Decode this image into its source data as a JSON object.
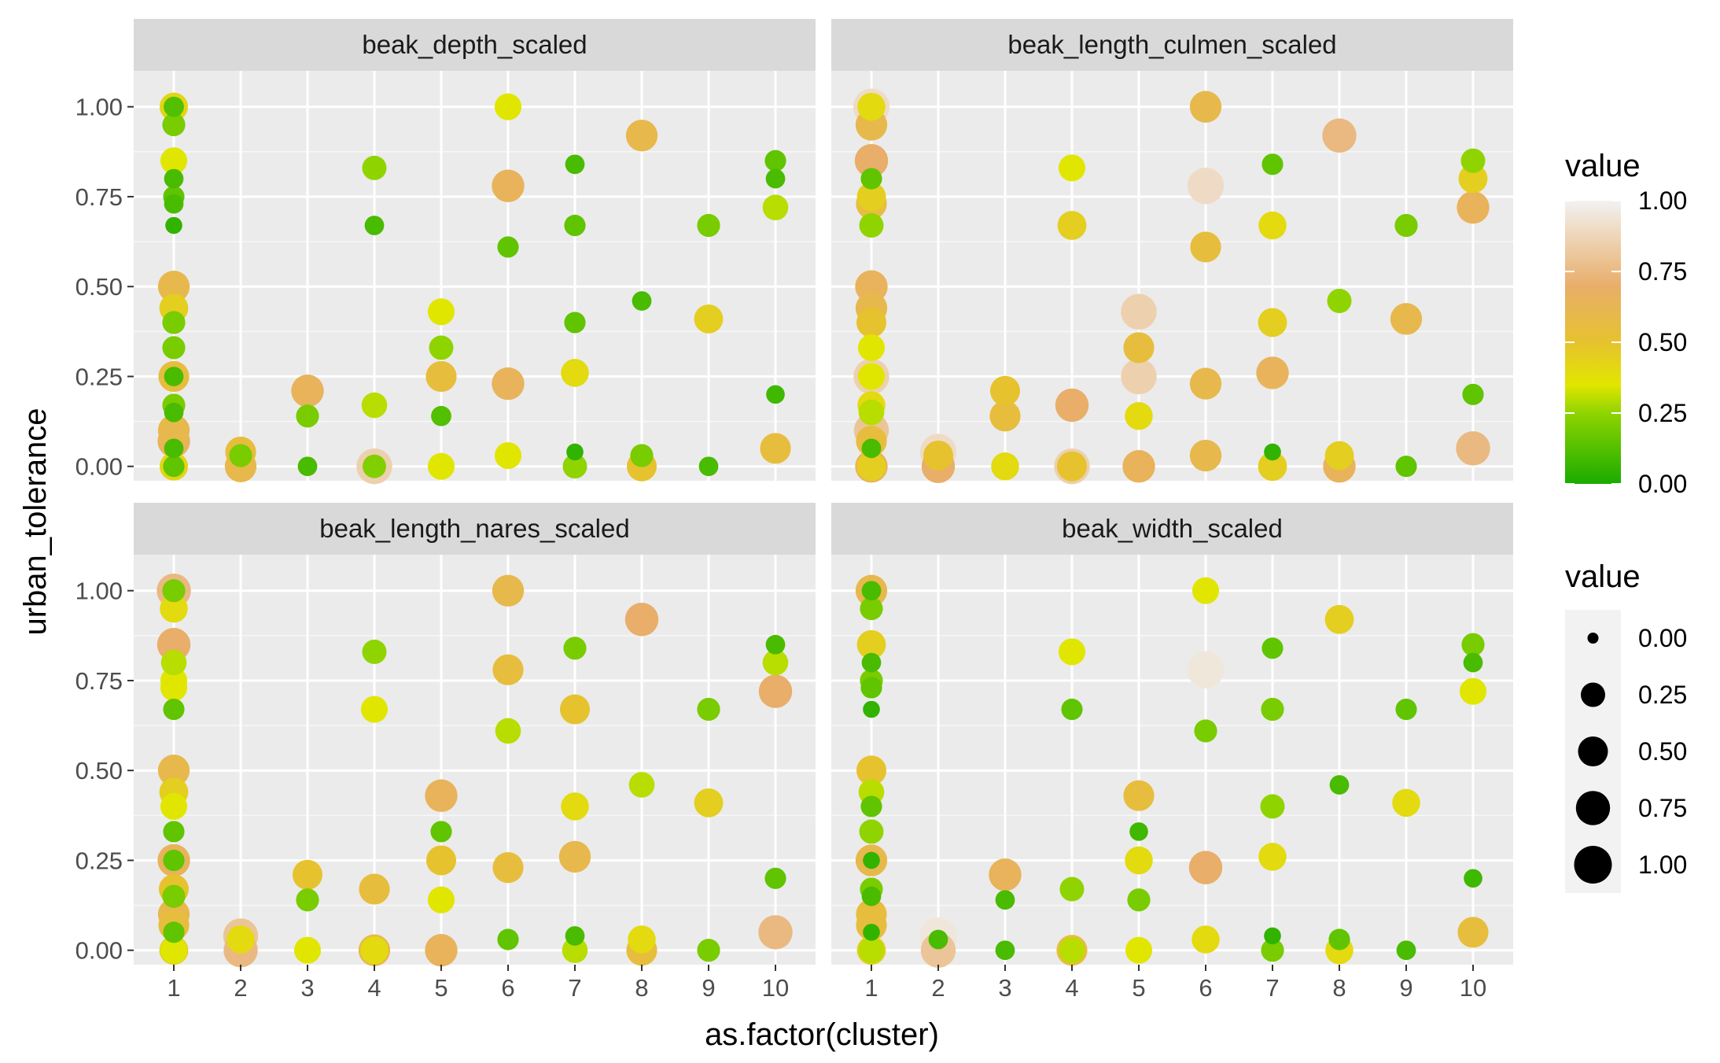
{
  "chart_data": {
    "type": "scatter",
    "layout": "facet_wrap 2x2",
    "xlabel": "as.factor(cluster)",
    "ylabel": "urban_tolerance",
    "x_categories": [
      "1",
      "2",
      "3",
      "4",
      "5",
      "6",
      "7",
      "8",
      "9",
      "10"
    ],
    "y_ticks": [
      0,
      0.25,
      0.5,
      0.75,
      1.0
    ],
    "y_tick_labels": [
      "0.00",
      "0.25",
      "0.50",
      "0.75",
      "1.00"
    ],
    "ylim": [
      -0.04,
      1.1
    ],
    "grid": true,
    "encoding": {
      "color": "value",
      "size": "value"
    },
    "color_legend": {
      "title": "value",
      "range": [
        0,
        1
      ],
      "ticks": [
        "1.00",
        "0.75",
        "0.50",
        "0.25",
        "0.00"
      ],
      "stops": [
        {
          "value": 0.0,
          "color": "#1aab00"
        },
        {
          "value": 0.25,
          "color": "#8fd400"
        },
        {
          "value": 0.35,
          "color": "#e1e600"
        },
        {
          "value": 0.5,
          "color": "#e6c22e"
        },
        {
          "value": 0.7,
          "color": "#e8ae6a"
        },
        {
          "value": 1.0,
          "color": "#f2f2f2"
        }
      ]
    },
    "size_legend": {
      "title": "value",
      "breaks": [
        0.0,
        0.25,
        0.5,
        0.75,
        1.0
      ],
      "labels": [
        "0.00",
        "0.25",
        "0.50",
        "0.75",
        "1.00"
      ]
    },
    "legend_position": "right",
    "facets": [
      {
        "name": "beak_depth_scaled",
        "points": [
          [
            1,
            1.0,
            0.42
          ],
          [
            1,
            1.0,
            0.12
          ],
          [
            1,
            0.95,
            0.2
          ],
          [
            1,
            0.85,
            0.35
          ],
          [
            1,
            0.8,
            0.1
          ],
          [
            1,
            0.75,
            0.15
          ],
          [
            1,
            0.73,
            0.1
          ],
          [
            1,
            0.67,
            0.05
          ],
          [
            1,
            0.5,
            0.6
          ],
          [
            1,
            0.44,
            0.45
          ],
          [
            1,
            0.4,
            0.2
          ],
          [
            1,
            0.33,
            0.2
          ],
          [
            1,
            0.25,
            0.55
          ],
          [
            1,
            0.25,
            0.1
          ],
          [
            1,
            0.17,
            0.2
          ],
          [
            1,
            0.15,
            0.1
          ],
          [
            1,
            0.1,
            0.6
          ],
          [
            1,
            0.07,
            0.65
          ],
          [
            1,
            0.05,
            0.1
          ],
          [
            1,
            0.0,
            0.42
          ],
          [
            1,
            0.0,
            0.15
          ],
          [
            2,
            0.04,
            0.55
          ],
          [
            2,
            0.0,
            0.6
          ],
          [
            2,
            0.03,
            0.2
          ],
          [
            3,
            0.21,
            0.65
          ],
          [
            3,
            0.14,
            0.2
          ],
          [
            3,
            0.0,
            0.1
          ],
          [
            4,
            0.83,
            0.25
          ],
          [
            4,
            0.67,
            0.1
          ],
          [
            4,
            0.17,
            0.3
          ],
          [
            4,
            0.0,
            0.85
          ],
          [
            4,
            0.0,
            0.22
          ],
          [
            5,
            0.43,
            0.35
          ],
          [
            5,
            0.33,
            0.25
          ],
          [
            5,
            0.25,
            0.55
          ],
          [
            5,
            0.14,
            0.12
          ],
          [
            5,
            0.0,
            0.35
          ],
          [
            6,
            1.0,
            0.35
          ],
          [
            6,
            0.78,
            0.65
          ],
          [
            6,
            0.61,
            0.15
          ],
          [
            6,
            0.23,
            0.65
          ],
          [
            6,
            0.03,
            0.35
          ],
          [
            7,
            0.84,
            0.1
          ],
          [
            7,
            0.67,
            0.15
          ],
          [
            7,
            0.4,
            0.15
          ],
          [
            7,
            0.26,
            0.4
          ],
          [
            7,
            0.04,
            0.05
          ],
          [
            7,
            0.0,
            0.25
          ],
          [
            8,
            0.92,
            0.6
          ],
          [
            8,
            0.46,
            0.1
          ],
          [
            8,
            0.03,
            0.2
          ],
          [
            8,
            0.0,
            0.5
          ],
          [
            9,
            0.67,
            0.2
          ],
          [
            9,
            0.41,
            0.45
          ],
          [
            9,
            0.0,
            0.1
          ],
          [
            10,
            0.85,
            0.15
          ],
          [
            10,
            0.8,
            0.1
          ],
          [
            10,
            0.72,
            0.3
          ],
          [
            10,
            0.2,
            0.08
          ],
          [
            10,
            0.05,
            0.55
          ]
        ]
      },
      {
        "name": "beak_length_culmen_scaled",
        "points": [
          [
            1,
            1.0,
            0.9
          ],
          [
            1,
            1.0,
            0.4
          ],
          [
            1,
            0.95,
            0.6
          ],
          [
            1,
            0.85,
            0.7
          ],
          [
            1,
            0.8,
            0.15
          ],
          [
            1,
            0.75,
            0.45
          ],
          [
            1,
            0.73,
            0.55
          ],
          [
            1,
            0.67,
            0.25
          ],
          [
            1,
            0.5,
            0.65
          ],
          [
            1,
            0.44,
            0.6
          ],
          [
            1,
            0.4,
            0.5
          ],
          [
            1,
            0.33,
            0.35
          ],
          [
            1,
            0.25,
            0.85
          ],
          [
            1,
            0.25,
            0.35
          ],
          [
            1,
            0.17,
            0.4
          ],
          [
            1,
            0.15,
            0.3
          ],
          [
            1,
            0.1,
            0.8
          ],
          [
            1,
            0.07,
            0.55
          ],
          [
            1,
            0.05,
            0.1
          ],
          [
            1,
            0.0,
            0.65
          ],
          [
            1,
            0.0,
            0.45
          ],
          [
            2,
            0.04,
            0.9
          ],
          [
            2,
            0.0,
            0.7
          ],
          [
            2,
            0.03,
            0.5
          ],
          [
            3,
            0.21,
            0.5
          ],
          [
            3,
            0.14,
            0.55
          ],
          [
            3,
            0.0,
            0.4
          ],
          [
            4,
            0.83,
            0.35
          ],
          [
            4,
            0.67,
            0.45
          ],
          [
            4,
            0.17,
            0.7
          ],
          [
            4,
            0.0,
            0.85
          ],
          [
            4,
            0.0,
            0.5
          ],
          [
            5,
            0.43,
            0.85
          ],
          [
            5,
            0.33,
            0.55
          ],
          [
            5,
            0.25,
            0.85
          ],
          [
            5,
            0.14,
            0.4
          ],
          [
            5,
            0.0,
            0.65
          ],
          [
            6,
            1.0,
            0.6
          ],
          [
            6,
            0.78,
            0.9
          ],
          [
            6,
            0.61,
            0.55
          ],
          [
            6,
            0.23,
            0.6
          ],
          [
            6,
            0.03,
            0.6
          ],
          [
            7,
            0.84,
            0.15
          ],
          [
            7,
            0.67,
            0.4
          ],
          [
            7,
            0.4,
            0.45
          ],
          [
            7,
            0.26,
            0.65
          ],
          [
            7,
            0.04,
            0.05
          ],
          [
            7,
            0.0,
            0.45
          ],
          [
            8,
            0.92,
            0.75
          ],
          [
            8,
            0.46,
            0.25
          ],
          [
            8,
            0.03,
            0.45
          ],
          [
            8,
            0.0,
            0.65
          ],
          [
            9,
            0.67,
            0.2
          ],
          [
            9,
            0.41,
            0.6
          ],
          [
            9,
            0.0,
            0.15
          ],
          [
            10,
            0.85,
            0.25
          ],
          [
            10,
            0.8,
            0.45
          ],
          [
            10,
            0.72,
            0.65
          ],
          [
            10,
            0.2,
            0.15
          ],
          [
            10,
            0.05,
            0.75
          ]
        ]
      },
      {
        "name": "beak_length_nares_scaled",
        "points": [
          [
            1,
            1.0,
            0.75
          ],
          [
            1,
            1.0,
            0.2
          ],
          [
            1,
            0.95,
            0.4
          ],
          [
            1,
            0.85,
            0.7
          ],
          [
            1,
            0.8,
            0.3
          ],
          [
            1,
            0.75,
            0.35
          ],
          [
            1,
            0.73,
            0.35
          ],
          [
            1,
            0.67,
            0.15
          ],
          [
            1,
            0.5,
            0.6
          ],
          [
            1,
            0.44,
            0.45
          ],
          [
            1,
            0.4,
            0.35
          ],
          [
            1,
            0.33,
            0.15
          ],
          [
            1,
            0.25,
            0.65
          ],
          [
            1,
            0.25,
            0.15
          ],
          [
            1,
            0.17,
            0.5
          ],
          [
            1,
            0.15,
            0.2
          ],
          [
            1,
            0.1,
            0.6
          ],
          [
            1,
            0.07,
            0.55
          ],
          [
            1,
            0.05,
            0.15
          ],
          [
            1,
            0.0,
            0.45
          ],
          [
            1,
            0.0,
            0.35
          ],
          [
            2,
            0.04,
            0.8
          ],
          [
            2,
            0.0,
            0.75
          ],
          [
            2,
            0.03,
            0.4
          ],
          [
            3,
            0.21,
            0.5
          ],
          [
            3,
            0.14,
            0.2
          ],
          [
            3,
            0.0,
            0.35
          ],
          [
            4,
            0.83,
            0.25
          ],
          [
            4,
            0.67,
            0.35
          ],
          [
            4,
            0.17,
            0.55
          ],
          [
            4,
            0.0,
            0.6
          ],
          [
            4,
            0.0,
            0.4
          ],
          [
            5,
            0.43,
            0.65
          ],
          [
            5,
            0.33,
            0.15
          ],
          [
            5,
            0.25,
            0.5
          ],
          [
            5,
            0.14,
            0.35
          ],
          [
            5,
            0.0,
            0.65
          ],
          [
            6,
            1.0,
            0.6
          ],
          [
            6,
            0.78,
            0.55
          ],
          [
            6,
            0.61,
            0.3
          ],
          [
            6,
            0.23,
            0.55
          ],
          [
            6,
            0.03,
            0.15
          ],
          [
            7,
            0.84,
            0.2
          ],
          [
            7,
            0.67,
            0.5
          ],
          [
            7,
            0.4,
            0.4
          ],
          [
            7,
            0.26,
            0.6
          ],
          [
            7,
            0.04,
            0.1
          ],
          [
            7,
            0.0,
            0.3
          ],
          [
            8,
            0.92,
            0.7
          ],
          [
            8,
            0.46,
            0.3
          ],
          [
            8,
            0.03,
            0.4
          ],
          [
            8,
            0.0,
            0.55
          ],
          [
            9,
            0.67,
            0.2
          ],
          [
            9,
            0.41,
            0.45
          ],
          [
            9,
            0.0,
            0.2
          ],
          [
            10,
            0.85,
            0.1
          ],
          [
            10,
            0.8,
            0.3
          ],
          [
            10,
            0.72,
            0.7
          ],
          [
            10,
            0.2,
            0.15
          ],
          [
            10,
            0.05,
            0.75
          ]
        ]
      },
      {
        "name": "beak_width_scaled",
        "points": [
          [
            1,
            1.0,
            0.6
          ],
          [
            1,
            1.0,
            0.1
          ],
          [
            1,
            0.95,
            0.2
          ],
          [
            1,
            0.85,
            0.45
          ],
          [
            1,
            0.8,
            0.1
          ],
          [
            1,
            0.75,
            0.2
          ],
          [
            1,
            0.73,
            0.15
          ],
          [
            1,
            0.67,
            0.05
          ],
          [
            1,
            0.5,
            0.5
          ],
          [
            1,
            0.44,
            0.3
          ],
          [
            1,
            0.4,
            0.15
          ],
          [
            1,
            0.33,
            0.25
          ],
          [
            1,
            0.25,
            0.6
          ],
          [
            1,
            0.25,
            0.05
          ],
          [
            1,
            0.17,
            0.2
          ],
          [
            1,
            0.15,
            0.1
          ],
          [
            1,
            0.1,
            0.55
          ],
          [
            1,
            0.07,
            0.55
          ],
          [
            1,
            0.05,
            0.05
          ],
          [
            1,
            0.0,
            0.45
          ],
          [
            1,
            0.0,
            0.3
          ],
          [
            2,
            0.04,
            0.95
          ],
          [
            2,
            0.0,
            0.8
          ],
          [
            2,
            0.03,
            0.1
          ],
          [
            3,
            0.21,
            0.65
          ],
          [
            3,
            0.14,
            0.1
          ],
          [
            3,
            0.0,
            0.1
          ],
          [
            4,
            0.83,
            0.35
          ],
          [
            4,
            0.67,
            0.15
          ],
          [
            4,
            0.17,
            0.25
          ],
          [
            4,
            0.0,
            0.55
          ],
          [
            4,
            0.0,
            0.3
          ],
          [
            5,
            0.43,
            0.55
          ],
          [
            5,
            0.33,
            0.08
          ],
          [
            5,
            0.25,
            0.4
          ],
          [
            5,
            0.14,
            0.2
          ],
          [
            5,
            0.0,
            0.35
          ],
          [
            6,
            1.0,
            0.35
          ],
          [
            6,
            0.78,
            0.95
          ],
          [
            6,
            0.61,
            0.2
          ],
          [
            6,
            0.23,
            0.7
          ],
          [
            6,
            0.03,
            0.4
          ],
          [
            7,
            0.84,
            0.15
          ],
          [
            7,
            0.67,
            0.2
          ],
          [
            7,
            0.4,
            0.25
          ],
          [
            7,
            0.26,
            0.4
          ],
          [
            7,
            0.04,
            0.05
          ],
          [
            7,
            0.0,
            0.2
          ],
          [
            8,
            0.92,
            0.45
          ],
          [
            8,
            0.46,
            0.1
          ],
          [
            8,
            0.03,
            0.15
          ],
          [
            8,
            0.0,
            0.4
          ],
          [
            9,
            0.67,
            0.15
          ],
          [
            9,
            0.41,
            0.4
          ],
          [
            9,
            0.0,
            0.1
          ],
          [
            10,
            0.85,
            0.2
          ],
          [
            10,
            0.8,
            0.1
          ],
          [
            10,
            0.72,
            0.35
          ],
          [
            10,
            0.2,
            0.08
          ],
          [
            10,
            0.05,
            0.55
          ]
        ]
      }
    ]
  }
}
